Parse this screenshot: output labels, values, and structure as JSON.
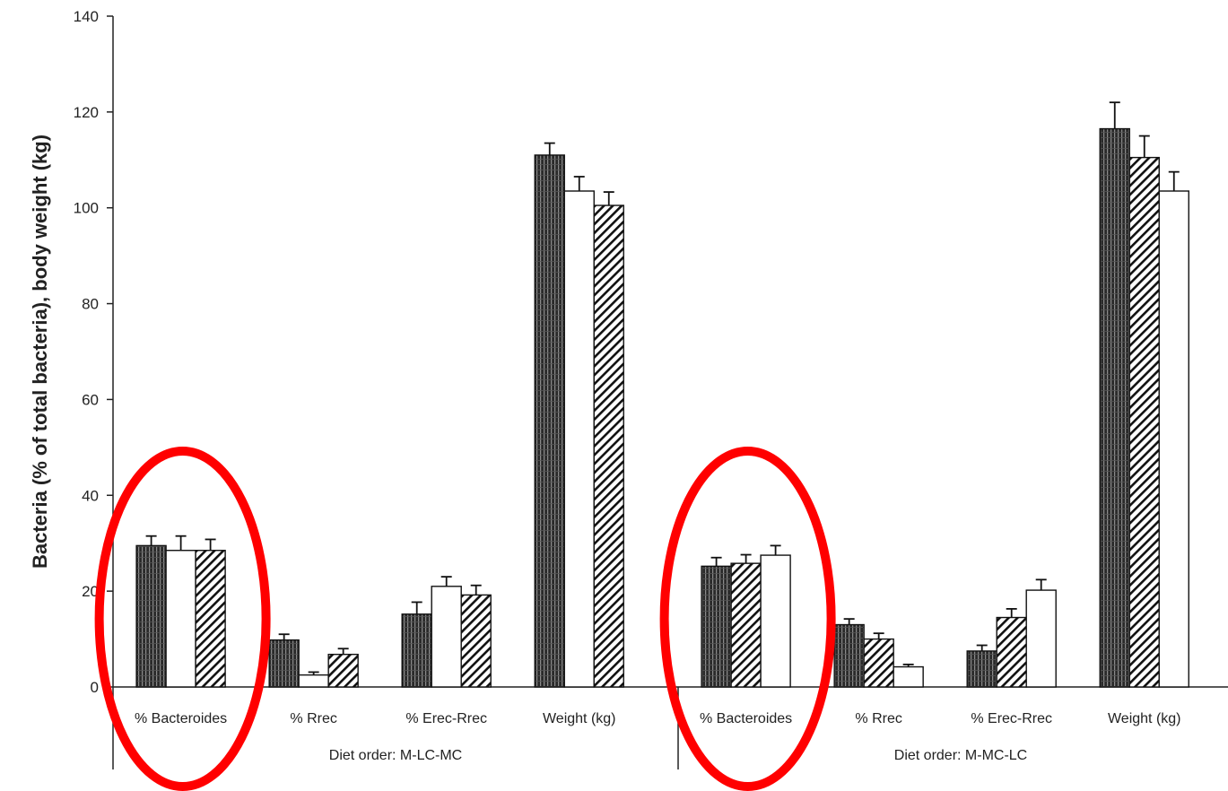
{
  "chart_data": {
    "type": "bar",
    "ylabel": "Bacteria (% of total bacteria), body weight (kg)",
    "xlabel": "",
    "title": "",
    "ylim": [
      0,
      140
    ],
    "yticks": [
      0,
      20,
      40,
      60,
      80,
      100,
      120,
      140
    ],
    "grid": false,
    "legend": "none",
    "groups": [
      {
        "label": "Diet order: M-LC-MC",
        "categories": [
          "% Bacteroides",
          "% Rrec",
          "% Erec-Rrec",
          "Weight (kg)"
        ],
        "bars": [
          [
            {
              "fill": "dark",
              "value": 29.5,
              "error": 2.0
            },
            {
              "fill": "white",
              "value": 28.5,
              "error": 3.0
            },
            {
              "fill": "hatch",
              "value": 28.5,
              "error": 2.3
            }
          ],
          [
            {
              "fill": "dark",
              "value": 9.8,
              "error": 1.2
            },
            {
              "fill": "white",
              "value": 2.5,
              "error": 0.6
            },
            {
              "fill": "hatch",
              "value": 6.8,
              "error": 1.2
            }
          ],
          [
            {
              "fill": "dark",
              "value": 15.2,
              "error": 2.5
            },
            {
              "fill": "white",
              "value": 21.0,
              "error": 2.0
            },
            {
              "fill": "hatch",
              "value": 19.2,
              "error": 2.0
            }
          ],
          [
            {
              "fill": "dark",
              "value": 111.0,
              "error": 2.5
            },
            {
              "fill": "white",
              "value": 103.5,
              "error": 3.0
            },
            {
              "fill": "hatch",
              "value": 100.5,
              "error": 2.8
            }
          ]
        ]
      },
      {
        "label": "Diet order: M-MC-LC",
        "categories": [
          "% Bacteroides",
          "% Rrec",
          "% Erec-Rrec",
          "Weight (kg)"
        ],
        "bars": [
          [
            {
              "fill": "dark",
              "value": 25.2,
              "error": 1.8
            },
            {
              "fill": "hatch",
              "value": 25.8,
              "error": 1.8
            },
            {
              "fill": "white",
              "value": 27.5,
              "error": 2.0
            }
          ],
          [
            {
              "fill": "dark",
              "value": 13.0,
              "error": 1.2
            },
            {
              "fill": "hatch",
              "value": 10.0,
              "error": 1.2
            },
            {
              "fill": "white",
              "value": 4.2,
              "error": 0.5
            }
          ],
          [
            {
              "fill": "dark",
              "value": 7.5,
              "error": 1.2
            },
            {
              "fill": "hatch",
              "value": 14.5,
              "error": 1.8
            },
            {
              "fill": "white",
              "value": 20.2,
              "error": 2.2
            }
          ],
          [
            {
              "fill": "dark",
              "value": 116.5,
              "error": 5.5
            },
            {
              "fill": "hatch",
              "value": 110.5,
              "error": 4.5
            },
            {
              "fill": "white",
              "value": 103.5,
              "error": 4.0
            }
          ]
        ]
      }
    ],
    "annotations": [
      {
        "shape": "ellipse",
        "color": "#ff0000",
        "target": "% Bacteroides",
        "group": 0
      },
      {
        "shape": "ellipse",
        "color": "#ff0000",
        "target": "% Bacteroides",
        "group": 1
      }
    ]
  }
}
